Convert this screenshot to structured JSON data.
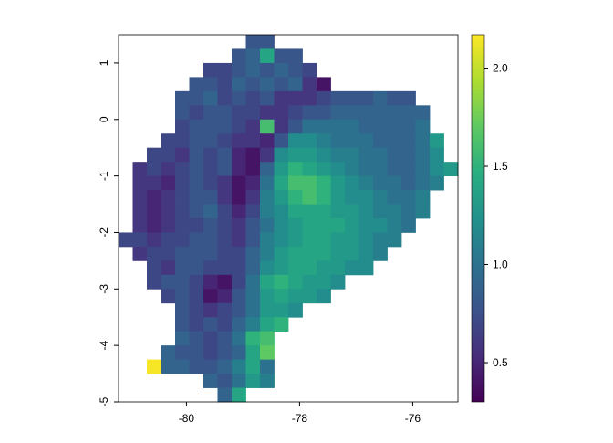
{
  "chart_data": {
    "type": "raster",
    "colormap": "viridis",
    "xlim": [
      -81.2,
      -75.2
    ],
    "ylim": [
      -5,
      1.5
    ],
    "xticks": [
      -80,
      -78,
      -76
    ],
    "yticks": [
      -5,
      -4,
      -3,
      -2,
      -1,
      0,
      1
    ],
    "clim": [
      0.3,
      2.17
    ],
    "cticks": [
      0.5,
      {
        "value": 1,
        "label": "1.0"
      },
      1.5,
      {
        "value": 2,
        "label": "2.0"
      }
    ],
    "x": [
      -81.075,
      -80.825,
      -80.575,
      -80.325,
      -80.075,
      -79.825,
      -79.575,
      -79.325,
      -79.075,
      -78.825,
      -78.575,
      -78.325,
      -78.075,
      -77.825,
      -77.575,
      -77.325,
      -77.075,
      -76.825,
      -76.575,
      -76.325,
      -76.075,
      -75.825,
      -75.575,
      -75.325
    ],
    "y": [
      1.375,
      1.125,
      0.875,
      0.625,
      0.375,
      0.125,
      -0.125,
      -0.375,
      -0.625,
      -0.875,
      -1.125,
      -1.375,
      -1.625,
      -1.875,
      -2.125,
      -2.375,
      -2.625,
      -2.875,
      -3.125,
      -3.375,
      -3.625,
      -3.875,
      -4.125,
      -4.375,
      -4.625,
      -4.875
    ],
    "values": [
      [
        null,
        null,
        null,
        null,
        null,
        null,
        null,
        null,
        null,
        0.8,
        0.8,
        null,
        null,
        null,
        null,
        null,
        null,
        null,
        null,
        null,
        null,
        null,
        null,
        null
      ],
      [
        null,
        null,
        null,
        null,
        null,
        null,
        null,
        null,
        0.8,
        0.9,
        1.4,
        0.8,
        0.8,
        null,
        null,
        null,
        null,
        null,
        null,
        null,
        null,
        null,
        null,
        null
      ],
      [
        null,
        null,
        null,
        null,
        null,
        null,
        0.7,
        0.7,
        0.8,
        0.9,
        0.8,
        0.9,
        0.8,
        0.7,
        null,
        null,
        null,
        null,
        null,
        null,
        null,
        null,
        null,
        null
      ],
      [
        null,
        null,
        null,
        null,
        null,
        0.8,
        0.8,
        0.7,
        0.9,
        0.8,
        0.9,
        0.8,
        0.9,
        0.6,
        0.4,
        null,
        null,
        null,
        null,
        null,
        null,
        null,
        null,
        null
      ],
      [
        null,
        null,
        null,
        null,
        0.8,
        0.8,
        0.9,
        0.7,
        0.8,
        0.7,
        0.8,
        0.6,
        0.6,
        0.6,
        0.7,
        0.8,
        0.8,
        0.8,
        0.9,
        0.8,
        0.8,
        null,
        null,
        null
      ],
      [
        null,
        null,
        null,
        null,
        0.8,
        0.7,
        0.8,
        0.8,
        0.7,
        0.7,
        0.6,
        0.6,
        0.7,
        0.8,
        0.8,
        0.9,
        0.9,
        0.9,
        0.9,
        0.9,
        0.9,
        0.9,
        null,
        null
      ],
      [
        null,
        null,
        null,
        null,
        0.7,
        0.8,
        0.8,
        0.8,
        0.7,
        0.6,
        1.6,
        0.6,
        0.8,
        1.0,
        1.0,
        1.0,
        1.0,
        0.9,
        0.9,
        0.9,
        0.9,
        1.0,
        null,
        null
      ],
      [
        null,
        null,
        null,
        0.7,
        0.7,
        0.8,
        0.8,
        0.7,
        0.6,
        0.6,
        0.5,
        0.8,
        1.2,
        1.2,
        1.1,
        1.0,
        1.0,
        1.0,
        0.9,
        0.9,
        0.9,
        1.0,
        1.3,
        null
      ],
      [
        null,
        null,
        0.7,
        0.7,
        0.6,
        0.8,
        0.7,
        0.8,
        0.5,
        0.4,
        0.6,
        1.2,
        1.3,
        1.3,
        1.2,
        1.1,
        1.1,
        1.0,
        1.0,
        0.9,
        0.9,
        1.0,
        1.2,
        null
      ],
      [
        null,
        0.6,
        0.7,
        0.6,
        0.7,
        0.8,
        0.7,
        0.8,
        0.5,
        0.4,
        0.9,
        1.3,
        1.5,
        1.4,
        1.3,
        1.2,
        1.1,
        1.0,
        1.0,
        0.9,
        0.9,
        1.0,
        1.2,
        1.3
      ],
      [
        null,
        0.6,
        0.6,
        0.5,
        0.7,
        0.8,
        0.7,
        0.6,
        0.4,
        0.5,
        1.0,
        1.4,
        1.6,
        1.6,
        1.5,
        1.3,
        1.2,
        1.1,
        1.0,
        1.0,
        0.9,
        1.0,
        1.1,
        null
      ],
      [
        null,
        0.6,
        0.5,
        0.6,
        0.7,
        0.8,
        0.8,
        0.6,
        0.4,
        0.6,
        1.1,
        1.3,
        1.5,
        1.6,
        1.5,
        1.3,
        1.2,
        1.2,
        1.1,
        1.0,
        1.0,
        1.1,
        null,
        null
      ],
      [
        null,
        0.6,
        0.5,
        0.6,
        0.7,
        0.8,
        0.9,
        0.7,
        0.5,
        0.7,
        1.1,
        1.2,
        1.4,
        1.4,
        1.4,
        1.3,
        1.3,
        1.2,
        1.1,
        1.1,
        1.0,
        1.1,
        null,
        null
      ],
      [
        null,
        0.6,
        0.5,
        0.6,
        0.7,
        0.7,
        0.8,
        0.7,
        0.6,
        0.8,
        1.0,
        1.2,
        1.3,
        1.4,
        1.4,
        1.4,
        1.3,
        1.2,
        1.2,
        1.1,
        1.0,
        null,
        null,
        null
      ],
      [
        0.7,
        0.7,
        0.6,
        0.7,
        0.7,
        0.8,
        0.8,
        0.7,
        0.6,
        0.8,
        1.1,
        1.2,
        1.3,
        1.4,
        1.4,
        1.3,
        1.3,
        1.2,
        1.1,
        1.1,
        null,
        null,
        null,
        null
      ],
      [
        null,
        0.6,
        0.7,
        0.7,
        0.8,
        0.8,
        0.8,
        0.7,
        0.7,
        0.9,
        1.1,
        1.3,
        1.4,
        1.4,
        1.4,
        1.3,
        1.3,
        1.2,
        1.1,
        null,
        null,
        null,
        null,
        null
      ],
      [
        null,
        null,
        0.7,
        0.6,
        0.8,
        0.8,
        0.7,
        0.7,
        0.7,
        0.9,
        1.2,
        1.3,
        1.4,
        1.4,
        1.3,
        1.3,
        1.2,
        1.2,
        null,
        null,
        null,
        null,
        null,
        null
      ],
      [
        null,
        null,
        0.7,
        0.8,
        0.8,
        0.7,
        0.5,
        0.4,
        0.7,
        1.0,
        1.4,
        1.5,
        1.4,
        1.3,
        1.3,
        1.2,
        null,
        null,
        null,
        null,
        null,
        null,
        null,
        null
      ],
      [
        null,
        null,
        null,
        0.7,
        0.8,
        0.7,
        0.4,
        0.5,
        0.8,
        1.0,
        1.3,
        1.4,
        1.3,
        1.3,
        1.2,
        null,
        null,
        null,
        null,
        null,
        null,
        null,
        null,
        null
      ],
      [
        null,
        null,
        null,
        null,
        0.8,
        0.7,
        0.6,
        0.7,
        0.8,
        1.0,
        1.3,
        1.3,
        1.2,
        null,
        null,
        null,
        null,
        null,
        null,
        null,
        null,
        null,
        null,
        null
      ],
      [
        null,
        null,
        null,
        null,
        0.8,
        0.7,
        0.8,
        0.7,
        0.9,
        1.1,
        1.4,
        1.5,
        null,
        null,
        null,
        null,
        null,
        null,
        null,
        null,
        null,
        null,
        null,
        null
      ],
      [
        null,
        null,
        null,
        null,
        0.9,
        0.8,
        0.7,
        0.8,
        1.0,
        1.5,
        1.6,
        null,
        null,
        null,
        null,
        null,
        null,
        null,
        null,
        null,
        null,
        null,
        null,
        null
      ],
      [
        null,
        null,
        null,
        0.9,
        0.8,
        0.8,
        0.7,
        0.8,
        0.9,
        1.4,
        1.7,
        null,
        null,
        null,
        null,
        null,
        null,
        null,
        null,
        null,
        null,
        null,
        null,
        null
      ],
      [
        null,
        null,
        2.15,
        0.9,
        0.9,
        0.8,
        0.8,
        0.9,
        1.1,
        1.4,
        1.0,
        null,
        null,
        null,
        null,
        null,
        null,
        null,
        null,
        null,
        null,
        null,
        null,
        null
      ],
      [
        null,
        null,
        null,
        null,
        null,
        null,
        0.9,
        0.8,
        1.0,
        1.3,
        1.1,
        null,
        null,
        null,
        null,
        null,
        null,
        null,
        null,
        null,
        null,
        null,
        null,
        null
      ],
      [
        null,
        null,
        null,
        null,
        null,
        null,
        null,
        0.9,
        1.4,
        null,
        null,
        null,
        null,
        null,
        null,
        null,
        null,
        null,
        null,
        null,
        null,
        null,
        null,
        null
      ]
    ]
  }
}
